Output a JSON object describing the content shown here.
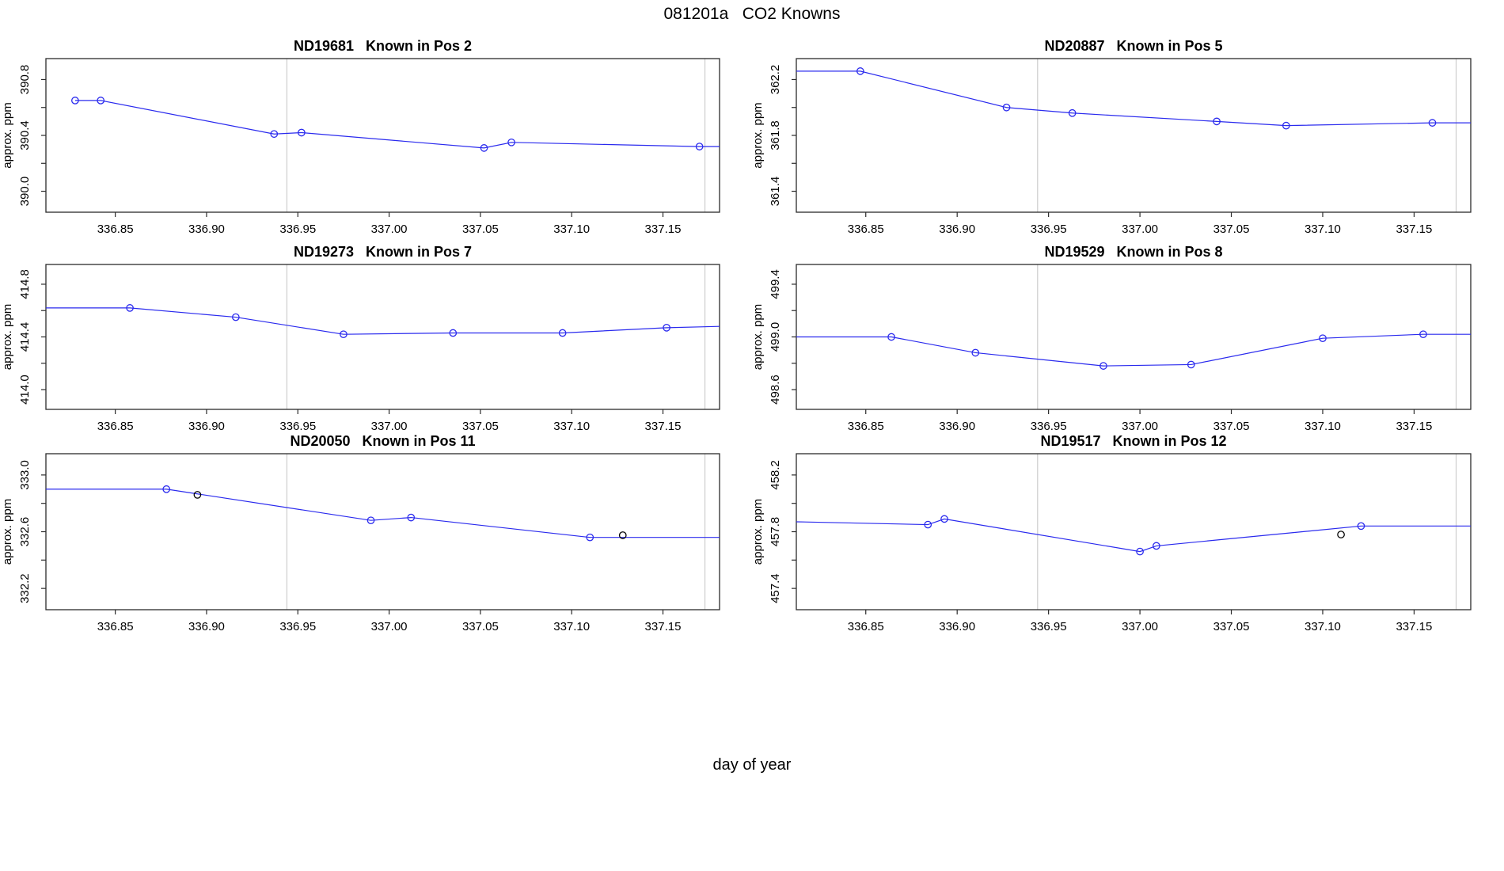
{
  "figure": {
    "title": "081201a   CO2 Knowns",
    "xlabel": "day of year",
    "background": "#ffffff"
  },
  "chart_data": {
    "type": "line",
    "layout": "2 columns x 3 rows of small-multiple line plots",
    "title": "081201a   CO2 Knowns",
    "xlabel": "day of year",
    "xlim": [
      336.812,
      337.181
    ],
    "xticks": [
      336.85,
      336.9,
      336.95,
      337.0,
      337.05,
      337.1,
      337.15
    ],
    "xtick_labels": [
      "336.85",
      "336.90",
      "336.95",
      "337.00",
      "337.05",
      "337.10",
      "337.15"
    ],
    "guide_lines_x": [
      336.944,
      337.173
    ],
    "grid": "off",
    "legend": "none",
    "colors": {
      "line": "#2a2aee",
      "marker": "#2a2aee",
      "marker_black": "#000000",
      "axis": "#2b2b2b",
      "guide": "#cdcdcd",
      "text": "#000000"
    },
    "panels": [
      {
        "serial": "ND19681",
        "title": "ND19681   Known in Pos 2",
        "ylabel": "approx. ppm",
        "ylim": [
          389.85,
          390.95
        ],
        "yticks": [
          390.0,
          390.2,
          390.4,
          390.6,
          390.8
        ],
        "ytick_labels": [
          "390.0",
          "",
          "390.4",
          "",
          "390.8"
        ],
        "line": {
          "x": [
            336.828,
            336.842,
            336.937,
            336.952,
            337.052,
            337.067,
            337.17,
            337.181
          ],
          "y": [
            390.65,
            390.65,
            390.41,
            390.42,
            390.31,
            390.35,
            390.32,
            390.32
          ]
        },
        "points": {
          "x": [
            336.828,
            336.842,
            336.937,
            336.952,
            337.052,
            337.067,
            337.17
          ],
          "y": [
            390.65,
            390.65,
            390.41,
            390.42,
            390.31,
            390.35,
            390.32
          ]
        },
        "points_black": {
          "x": [],
          "y": []
        }
      },
      {
        "serial": "ND20887",
        "title": "ND20887   Known in Pos 5",
        "ylabel": "approx. ppm",
        "ylim": [
          361.25,
          362.35
        ],
        "yticks": [
          361.4,
          361.6,
          361.8,
          362.0,
          362.2
        ],
        "ytick_labels": [
          "361.4",
          "",
          "361.8",
          "",
          "362.2"
        ],
        "line": {
          "x": [
            336.812,
            336.847,
            336.927,
            336.963,
            337.042,
            337.08,
            337.16,
            337.181
          ],
          "y": [
            362.26,
            362.26,
            362.0,
            361.96,
            361.9,
            361.87,
            361.89,
            361.89
          ]
        },
        "points": {
          "x": [
            336.847,
            336.927,
            336.963,
            337.042,
            337.08,
            337.16
          ],
          "y": [
            362.26,
            362.0,
            361.96,
            361.9,
            361.87,
            361.89
          ]
        },
        "points_black": {
          "x": [],
          "y": []
        }
      },
      {
        "serial": "ND19273",
        "title": "ND19273   Known in Pos 7",
        "ylabel": "approx. ppm",
        "ylim": [
          413.85,
          414.95
        ],
        "yticks": [
          414.0,
          414.2,
          414.4,
          414.6,
          414.8
        ],
        "ytick_labels": [
          "414.0",
          "",
          "414.4",
          "",
          "414.8"
        ],
        "line": {
          "x": [
            336.812,
            336.858,
            336.916,
            336.975,
            337.035,
            337.095,
            337.152,
            337.181
          ],
          "y": [
            414.62,
            414.62,
            414.55,
            414.42,
            414.43,
            414.43,
            414.47,
            414.48
          ]
        },
        "points": {
          "x": [
            336.858,
            336.916,
            336.975,
            337.035,
            337.095,
            337.152
          ],
          "y": [
            414.62,
            414.55,
            414.42,
            414.43,
            414.43,
            414.47
          ]
        },
        "points_black": {
          "x": [],
          "y": []
        }
      },
      {
        "serial": "ND19529",
        "title": "ND19529   Known in Pos 8",
        "ylabel": "approx. ppm",
        "ylim": [
          498.45,
          499.55
        ],
        "yticks": [
          498.6,
          498.8,
          499.0,
          499.2,
          499.4
        ],
        "ytick_labels": [
          "498.6",
          "",
          "499.0",
          "",
          "499.4"
        ],
        "line": {
          "x": [
            336.812,
            336.864,
            336.91,
            336.98,
            337.028,
            337.1,
            337.155,
            337.181
          ],
          "y": [
            499.0,
            499.0,
            498.88,
            498.78,
            498.79,
            498.99,
            499.02,
            499.02
          ]
        },
        "points": {
          "x": [
            336.864,
            336.91,
            336.98,
            337.028,
            337.1,
            337.155
          ],
          "y": [
            499.0,
            498.88,
            498.78,
            498.79,
            498.99,
            499.02
          ]
        },
        "points_black": {
          "x": [],
          "y": []
        }
      },
      {
        "serial": "ND20050",
        "title": "ND20050   Known in Pos 11",
        "ylabel": "approx. ppm",
        "ylim": [
          332.05,
          333.15
        ],
        "yticks": [
          332.2,
          332.4,
          332.6,
          332.8,
          333.0
        ],
        "ytick_labels": [
          "332.2",
          "",
          "332.6",
          "",
          "333.0"
        ],
        "line": {
          "x": [
            336.812,
            336.878,
            336.99,
            337.012,
            337.11,
            337.181
          ],
          "y": [
            332.9,
            332.9,
            332.68,
            332.7,
            332.56,
            332.56
          ]
        },
        "points": {
          "x": [
            336.878,
            336.99,
            337.012,
            337.11
          ],
          "y": [
            332.9,
            332.68,
            332.7,
            332.56
          ]
        },
        "points_black": {
          "x": [
            336.895,
            337.128
          ],
          "y": [
            332.86,
            332.575
          ]
        }
      },
      {
        "serial": "ND19517",
        "title": "ND19517   Known in Pos 12",
        "ylabel": "approx. ppm",
        "ylim": [
          457.25,
          458.35
        ],
        "yticks": [
          457.4,
          457.6,
          457.8,
          458.0,
          458.2
        ],
        "ytick_labels": [
          "457.4",
          "",
          "457.8",
          "",
          "458.2"
        ],
        "line": {
          "x": [
            336.812,
            336.884,
            336.893,
            337.0,
            337.009,
            337.121,
            337.181
          ],
          "y": [
            457.87,
            457.85,
            457.89,
            457.66,
            457.7,
            457.84,
            457.84
          ]
        },
        "points": {
          "x": [
            336.884,
            336.893,
            337.0,
            337.009,
            337.121
          ],
          "y": [
            457.85,
            457.89,
            457.66,
            457.7,
            457.84
          ]
        },
        "points_black": {
          "x": [
            337.11
          ],
          "y": [
            457.78
          ]
        }
      }
    ]
  }
}
